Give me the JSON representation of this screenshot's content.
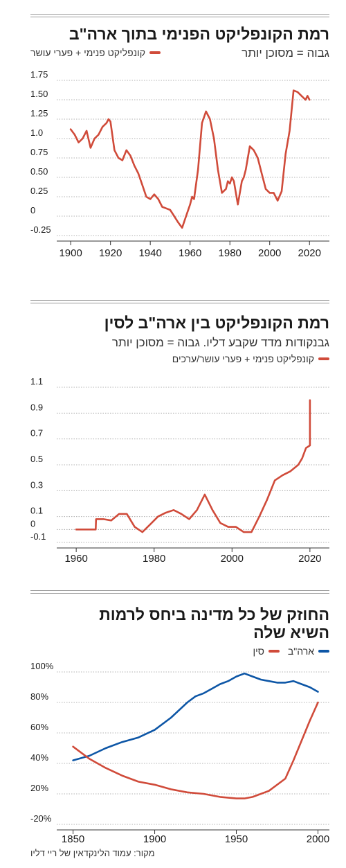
{
  "colors": {
    "red": "#d04b3a",
    "blue": "#0d56a6",
    "grid": "#9a9a9a",
    "text": "#1a1a1a"
  },
  "source": "מקור: עמוד הלינקדאין של ריי דליו",
  "chart_data": [
    {
      "type": "line",
      "title": "רמת הקונפליקט הפנימי בתוך ארה\"ב",
      "subtitle": "גבוה = מסוכן יותר",
      "legend": "קונפליקט פנימי + פערי עושר",
      "x_ticks": [
        "1900",
        "1920",
        "1940",
        "1960",
        "1980",
        "2000",
        "2020"
      ],
      "y_ticks": [
        "-0.25",
        "0",
        "0.25",
        "0.50",
        "0.75",
        "1.0",
        "1.25",
        "1.50",
        "1.75"
      ],
      "ylim": [
        -0.25,
        1.75
      ],
      "xlim": [
        1893,
        2030
      ],
      "series": [
        {
          "color": "#d04b3a",
          "x": [
            1900,
            1902,
            1904,
            1906,
            1908,
            1910,
            1912,
            1914,
            1916,
            1918,
            1919,
            1920,
            1922,
            1924,
            1926,
            1928,
            1930,
            1932,
            1934,
            1936,
            1938,
            1940,
            1942,
            1944,
            1946,
            1948,
            1950,
            1952,
            1954,
            1956,
            1958,
            1960,
            1961,
            1962,
            1964,
            1966,
            1968,
            1970,
            1972,
            1974,
            1976,
            1978,
            1979,
            1980,
            1981,
            1982,
            1984,
            1986,
            1987,
            1988,
            1990,
            1992,
            1994,
            1996,
            1998,
            2000,
            2002,
            2004,
            2006,
            2008,
            2010,
            2012,
            2014,
            2016,
            2018,
            2019,
            2020
          ],
          "y": [
            1.12,
            1.05,
            0.95,
            1.0,
            1.1,
            0.88,
            1.0,
            1.05,
            1.15,
            1.2,
            1.25,
            1.22,
            0.85,
            0.75,
            0.72,
            0.85,
            0.78,
            0.65,
            0.55,
            0.4,
            0.25,
            0.22,
            0.28,
            0.22,
            0.12,
            0.1,
            0.08,
            0.0,
            -0.08,
            -0.15,
            0.0,
            0.15,
            0.25,
            0.22,
            0.6,
            1.2,
            1.35,
            1.25,
            1.0,
            0.6,
            0.3,
            0.35,
            0.45,
            0.42,
            0.5,
            0.45,
            0.15,
            0.45,
            0.5,
            0.6,
            0.9,
            0.85,
            0.75,
            0.55,
            0.35,
            0.3,
            0.3,
            0.2,
            0.32,
            0.8,
            1.1,
            1.62,
            1.6,
            1.55,
            1.5,
            1.55,
            1.5
          ]
        }
      ]
    },
    {
      "type": "line",
      "title": "רמת הקונפליקט בין ארה\"ב לסין",
      "subtitle": "גבנקודות מדד שקבע דליו. גבוה = מסוכן יותר",
      "legend": "קונפליקט פנימי + פערי עושר/ערכים",
      "x_ticks": [
        "1960",
        "1980",
        "2000",
        "2020"
      ],
      "y_ticks": [
        "-0.1",
        "0",
        "0.1",
        "0.3",
        "0.5",
        "0.7",
        "0.9",
        "1.1"
      ],
      "ylim": [
        -0.1,
        1.1
      ],
      "xlim": [
        1955,
        2025
      ],
      "series": [
        {
          "color": "#d04b3a",
          "x": [
            1960,
            1965,
            1965.1,
            1967,
            1969,
            1971,
            1973,
            1975,
            1977,
            1979,
            1981,
            1983,
            1985,
            1987,
            1989,
            1991,
            1993,
            1995,
            1997,
            1999,
            2001,
            2003,
            2005,
            2007,
            2009,
            2011,
            2013,
            2015,
            2017,
            2018,
            2019,
            2020,
            2020.01
          ],
          "y": [
            0,
            0,
            0.08,
            0.08,
            0.07,
            0.12,
            0.12,
            0.02,
            -0.02,
            0.04,
            0.1,
            0.13,
            0.15,
            0.12,
            0.08,
            0.15,
            0.27,
            0.15,
            0.05,
            0.02,
            0.02,
            -0.02,
            -0.02,
            0.1,
            0.23,
            0.38,
            0.42,
            0.45,
            0.5,
            0.55,
            0.63,
            0.65,
            1.0
          ]
        }
      ]
    },
    {
      "type": "line",
      "title": "החוזק של כל מדינה ביחס לרמות השיא שלה",
      "legend": [
        {
          "label": "ארה\"ב",
          "color": "#0d56a6"
        },
        {
          "label": "סין",
          "color": "#d04b3a"
        }
      ],
      "x_ticks": [
        "1850",
        "1900",
        "1950",
        "2000"
      ],
      "y_ticks": [
        "-20%",
        "20%",
        "40%",
        "60%",
        "80%",
        "100%"
      ],
      "ylim": [
        0,
        100
      ],
      "xlim": [
        1840,
        2007
      ],
      "series": [
        {
          "name": "ארה\"ב",
          "color": "#0d56a6",
          "x": [
            1850,
            1860,
            1870,
            1880,
            1890,
            1900,
            1910,
            1920,
            1925,
            1930,
            1935,
            1940,
            1945,
            1950,
            1955,
            1960,
            1965,
            1970,
            1975,
            1980,
            1985,
            1990,
            1995,
            2000
          ],
          "y": [
            42,
            45,
            50,
            54,
            57,
            62,
            70,
            80,
            84,
            86,
            89,
            92,
            94,
            97,
            99,
            97,
            95,
            94,
            93,
            93,
            94,
            92,
            90,
            87
          ]
        },
        {
          "name": "סין",
          "color": "#d04b3a",
          "x": [
            1850,
            1860,
            1870,
            1880,
            1890,
            1900,
            1910,
            1920,
            1930,
            1940,
            1950,
            1955,
            1960,
            1970,
            1980,
            1985,
            1990,
            1995,
            2000
          ],
          "y": [
            51,
            43,
            37,
            32,
            28,
            26,
            23,
            21,
            20,
            18,
            17,
            17,
            18,
            22,
            30,
            42,
            55,
            68,
            80
          ]
        }
      ]
    }
  ]
}
